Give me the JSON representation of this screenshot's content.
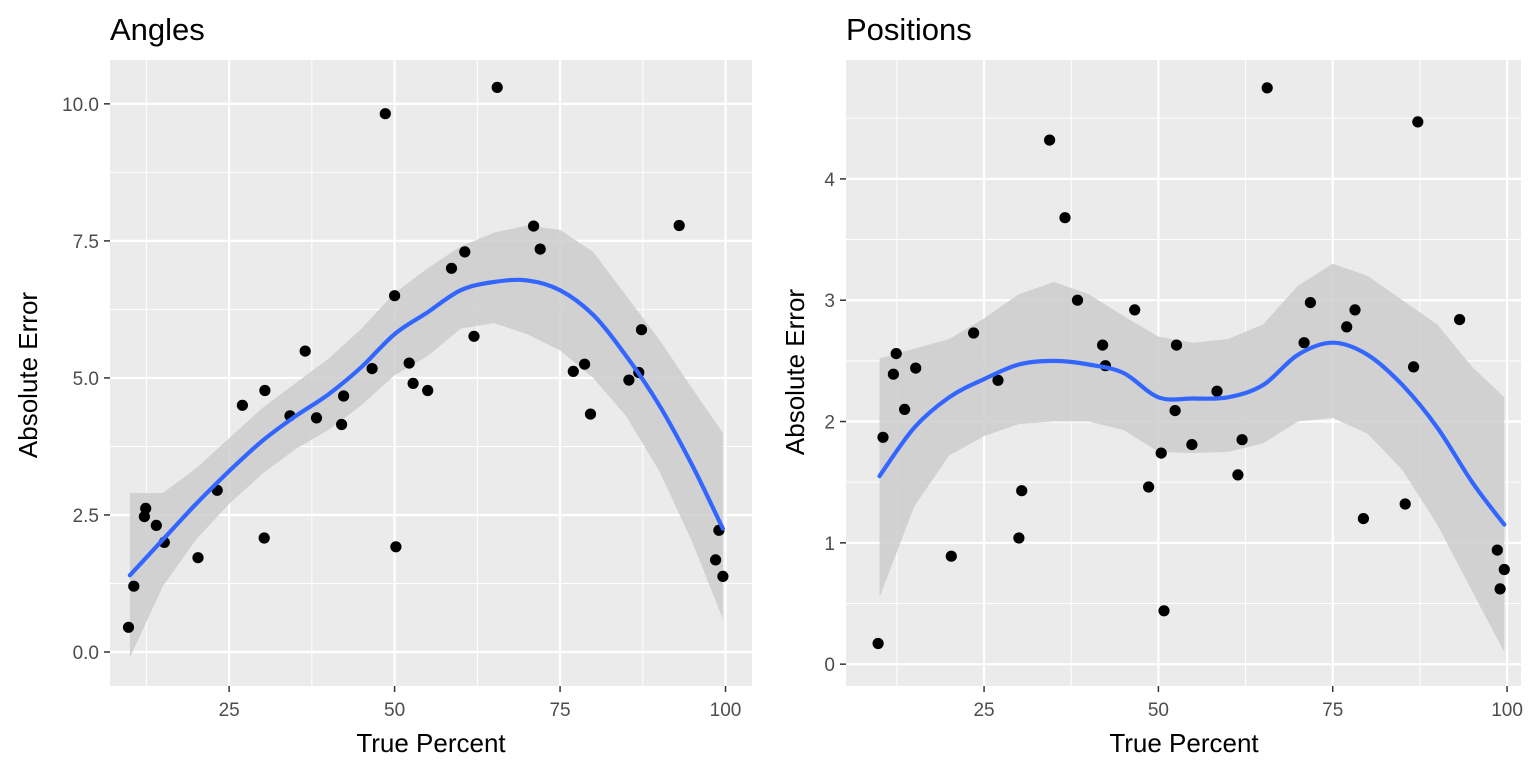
{
  "chart_data": [
    {
      "type": "scatter",
      "title": "Angles",
      "xlabel": "True Percent",
      "ylabel": "Absolute Error",
      "xlim": [
        7,
        104
      ],
      "ylim": [
        -0.62,
        10.8
      ],
      "grid": true,
      "x_ticks": [
        25,
        50,
        75,
        100
      ],
      "x_tick_labels": [
        "25",
        "50",
        "75",
        "100"
      ],
      "y_ticks": [
        0,
        2.5,
        5,
        7.5,
        10
      ],
      "y_tick_labels": [
        "0.0",
        "2.5",
        "5.0",
        "7.5",
        "10.0"
      ],
      "colors": {
        "points": "#000000",
        "smooth": "#3366ff",
        "ribbon": "#cccccc",
        "panel": "#ebebeb",
        "grid": "#ffffff"
      },
      "points": {
        "x": [
          9.8,
          10.6,
          12.2,
          12.4,
          14.0,
          15.2,
          20.3,
          23.2,
          27.0,
          30.3,
          30.4,
          34.2,
          36.5,
          38.2,
          42.0,
          42.3,
          46.6,
          48.6,
          50.0,
          50.2,
          52.2,
          52.8,
          55.0,
          58.6,
          60.6,
          62.0,
          65.5,
          71.0,
          72.0,
          77.0,
          78.7,
          79.6,
          85.4,
          86.9,
          87.3,
          93.0,
          98.5,
          99.0,
          99.6
        ],
        "y": [
          0.45,
          1.2,
          2.47,
          2.62,
          2.31,
          2.0,
          1.72,
          2.95,
          4.5,
          2.08,
          4.77,
          4.31,
          5.49,
          4.27,
          4.15,
          4.67,
          5.17,
          9.82,
          6.5,
          1.92,
          5.27,
          4.9,
          4.77,
          7.0,
          7.3,
          5.76,
          10.3,
          7.77,
          7.35,
          5.12,
          5.25,
          4.34,
          4.96,
          5.1,
          5.88,
          7.78,
          1.68,
          2.22,
          1.38
        ]
      },
      "smooth": {
        "x": [
          10,
          15,
          20,
          25,
          30,
          35,
          40,
          45,
          50,
          55,
          60,
          65,
          70,
          75,
          80,
          85,
          90,
          95,
          99.6
        ],
        "y": [
          1.4,
          2.05,
          2.7,
          3.3,
          3.85,
          4.3,
          4.7,
          5.2,
          5.8,
          6.2,
          6.6,
          6.75,
          6.78,
          6.6,
          6.15,
          5.4,
          4.5,
          3.4,
          2.25
        ],
        "lower": [
          -0.1,
          1.2,
          2.05,
          2.7,
          3.25,
          3.7,
          4.05,
          4.5,
          5.05,
          5.4,
          5.9,
          6.0,
          5.8,
          5.5,
          5.0,
          4.3,
          3.3,
          2.0,
          0.6
        ],
        "upper": [
          2.9,
          2.9,
          3.35,
          3.9,
          4.45,
          4.9,
          5.35,
          5.9,
          6.55,
          7.0,
          7.4,
          7.65,
          7.78,
          7.7,
          7.3,
          6.5,
          5.7,
          4.8,
          4.0
        ]
      }
    },
    {
      "type": "scatter",
      "title": "Positions",
      "xlabel": "True Percent",
      "ylabel": "Absolute Error",
      "xlim": [
        5.2,
        102
      ],
      "ylim": [
        -0.18,
        4.98
      ],
      "grid": true,
      "x_ticks": [
        25,
        50,
        75,
        100
      ],
      "x_tick_labels": [
        "25",
        "50",
        "75",
        "100"
      ],
      "y_ticks": [
        0,
        1,
        2,
        3,
        4
      ],
      "y_tick_labels": [
        "0",
        "1",
        "2",
        "3",
        "4"
      ],
      "colors": {
        "points": "#000000",
        "smooth": "#3366ff",
        "ribbon": "#cccccc",
        "panel": "#ebebeb",
        "grid": "#ffffff"
      },
      "points": {
        "x": [
          9.8,
          10.5,
          12.0,
          12.4,
          13.6,
          15.2,
          20.3,
          23.5,
          27.0,
          30.0,
          30.4,
          34.4,
          36.6,
          38.4,
          42.0,
          42.4,
          46.6,
          48.6,
          50.4,
          50.8,
          52.4,
          52.6,
          54.8,
          58.4,
          61.4,
          62.0,
          65.6,
          70.9,
          71.8,
          77.0,
          78.2,
          79.4,
          85.4,
          86.6,
          87.2,
          93.2,
          98.6,
          99.0,
          99.6
        ],
        "y": [
          0.17,
          1.87,
          2.39,
          2.56,
          2.1,
          2.44,
          0.89,
          2.73,
          2.34,
          1.04,
          1.43,
          4.32,
          3.68,
          3.0,
          2.63,
          2.46,
          2.92,
          1.46,
          1.74,
          0.44,
          2.09,
          2.63,
          1.81,
          2.25,
          1.56,
          1.85,
          4.75,
          2.65,
          2.98,
          2.78,
          2.92,
          1.2,
          1.32,
          2.45,
          4.47,
          2.84,
          0.94,
          0.62,
          0.78
        ]
      },
      "smooth": {
        "x": [
          10,
          15,
          20,
          25,
          30,
          35,
          40,
          45,
          50,
          55,
          60,
          65,
          70,
          75,
          80,
          85,
          90,
          95,
          99.6
        ],
        "y": [
          1.55,
          1.95,
          2.2,
          2.35,
          2.47,
          2.5,
          2.47,
          2.4,
          2.2,
          2.19,
          2.2,
          2.3,
          2.55,
          2.65,
          2.55,
          2.3,
          1.95,
          1.5,
          1.15
        ],
        "lower": [
          0.55,
          1.3,
          1.72,
          1.88,
          1.98,
          2.0,
          2.0,
          1.93,
          1.75,
          1.74,
          1.75,
          1.82,
          2.0,
          2.03,
          1.9,
          1.6,
          1.15,
          0.6,
          0.1
        ],
        "upper": [
          2.52,
          2.6,
          2.68,
          2.85,
          3.05,
          3.15,
          3.05,
          2.87,
          2.7,
          2.65,
          2.68,
          2.8,
          3.12,
          3.3,
          3.2,
          3.0,
          2.8,
          2.45,
          2.2
        ]
      }
    }
  ]
}
